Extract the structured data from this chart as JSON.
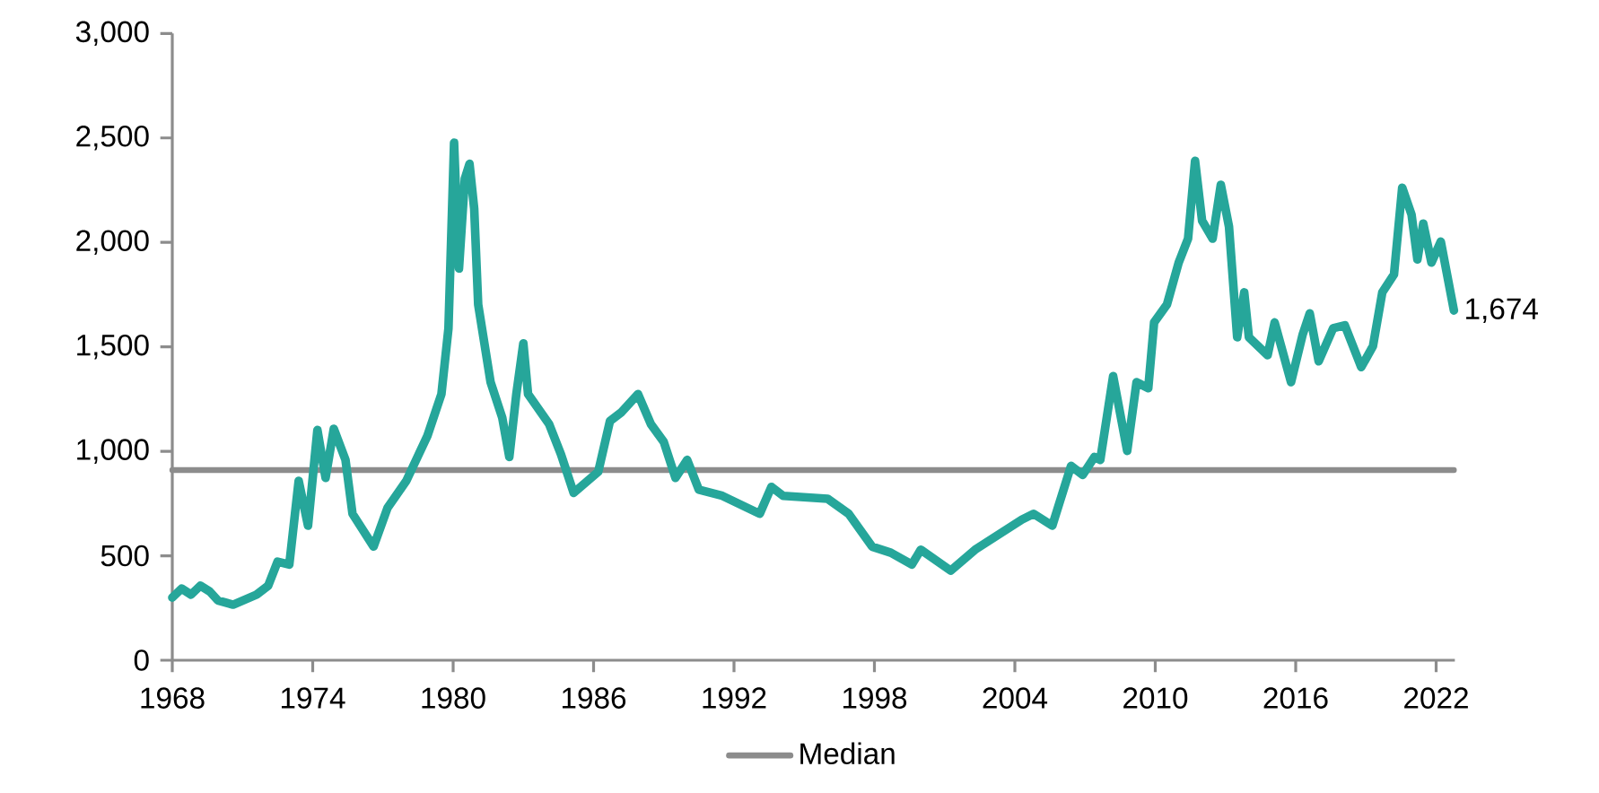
{
  "chart_data": {
    "type": "line",
    "xlim": [
      1968,
      2022.8
    ],
    "xticks": [
      1968,
      1974,
      1980,
      1986,
      1992,
      1998,
      2004,
      2010,
      2016,
      2022
    ],
    "ylim": [
      0,
      3000
    ],
    "yticks": [
      {
        "value": 0,
        "label": "0"
      },
      {
        "value": 500,
        "label": "500"
      },
      {
        "value": 1000,
        "label": "1,000"
      },
      {
        "value": 1500,
        "label": "1,500"
      },
      {
        "value": 2000,
        "label": "2,000"
      },
      {
        "value": 2500,
        "label": "2,500"
      },
      {
        "value": 3000,
        "label": "3,000"
      }
    ],
    "legend": "bottom",
    "annotations": [
      {
        "text": "1,674",
        "x": 2022.76,
        "y": 1674
      }
    ],
    "series": [
      {
        "name": "Median",
        "color": "#8c8c8c",
        "x": [
          1968,
          2022.76
        ],
        "values": [
          910,
          910
        ]
      },
      {
        "color": "#26a69a",
        "x": [
          1968.0,
          1968.4,
          1968.8,
          1969.2,
          1969.6,
          1969.95,
          1970.6,
          1971.6,
          1972.1,
          1972.5,
          1973.0,
          1973.4,
          1973.8,
          1974.2,
          1974.55,
          1974.9,
          1975.4,
          1975.7,
          1976.6,
          1977.2,
          1978.0,
          1978.9,
          1979.5,
          1979.8,
          1980.04,
          1980.25,
          1980.5,
          1980.7,
          1980.9,
          1981.07,
          1981.6,
          1982.1,
          1982.4,
          1982.7,
          1983.0,
          1983.2,
          1984.1,
          1984.6,
          1985.15,
          1986.2,
          1986.7,
          1987.2,
          1987.9,
          1988.45,
          1989.0,
          1989.5,
          1990.0,
          1990.5,
          1991.5,
          1993.1,
          1993.6,
          1994.1,
          1996.0,
          1996.9,
          1997.9,
          1998.7,
          1999.6,
          1999.98,
          2001.26,
          2002.3,
          2003.3,
          2004.3,
          2004.8,
          2005.6,
          2006.4,
          2006.9,
          2007.4,
          2007.65,
          2008.2,
          2008.8,
          2009.2,
          2009.7,
          2009.95,
          2010.5,
          2011.0,
          2011.4,
          2011.7,
          2012.0,
          2012.45,
          2012.8,
          2013.15,
          2013.5,
          2013.8,
          2014.0,
          2014.8,
          2015.1,
          2015.8,
          2016.3,
          2016.6,
          2016.98,
          2017.6,
          2018.1,
          2018.8,
          2019.3,
          2019.7,
          2020.2,
          2020.55,
          2020.95,
          2021.2,
          2021.45,
          2021.8,
          2022.2,
          2022.76
        ],
        "values": [
          300,
          343,
          314,
          357,
          329,
          286,
          266,
          314,
          357,
          472,
          458,
          859,
          644,
          1102,
          873,
          1108,
          959,
          701,
          544,
          730,
          859,
          1074,
          1274,
          1589,
          2477,
          1875,
          2305,
          2376,
          2161,
          1703,
          1331,
          1160,
          973,
          1274,
          1517,
          1274,
          1130,
          988,
          801,
          902,
          1145,
          1188,
          1274,
          1130,
          1045,
          873,
          959,
          816,
          787,
          701,
          830,
          787,
          773,
          701,
          544,
          515,
          458,
          529,
          429,
          529,
          601,
          673,
          701,
          644,
          930,
          887,
          973,
          959,
          1360,
          1002,
          1331,
          1302,
          1617,
          1703,
          1903,
          2018,
          2390,
          2104,
          2018,
          2276,
          2075,
          1546,
          1761,
          1546,
          1460,
          1617,
          1331,
          1560,
          1660,
          1431,
          1589,
          1603,
          1403,
          1503,
          1761,
          1847,
          2262,
          2133,
          1918,
          2090,
          1903,
          2004,
          1674
        ]
      }
    ]
  }
}
